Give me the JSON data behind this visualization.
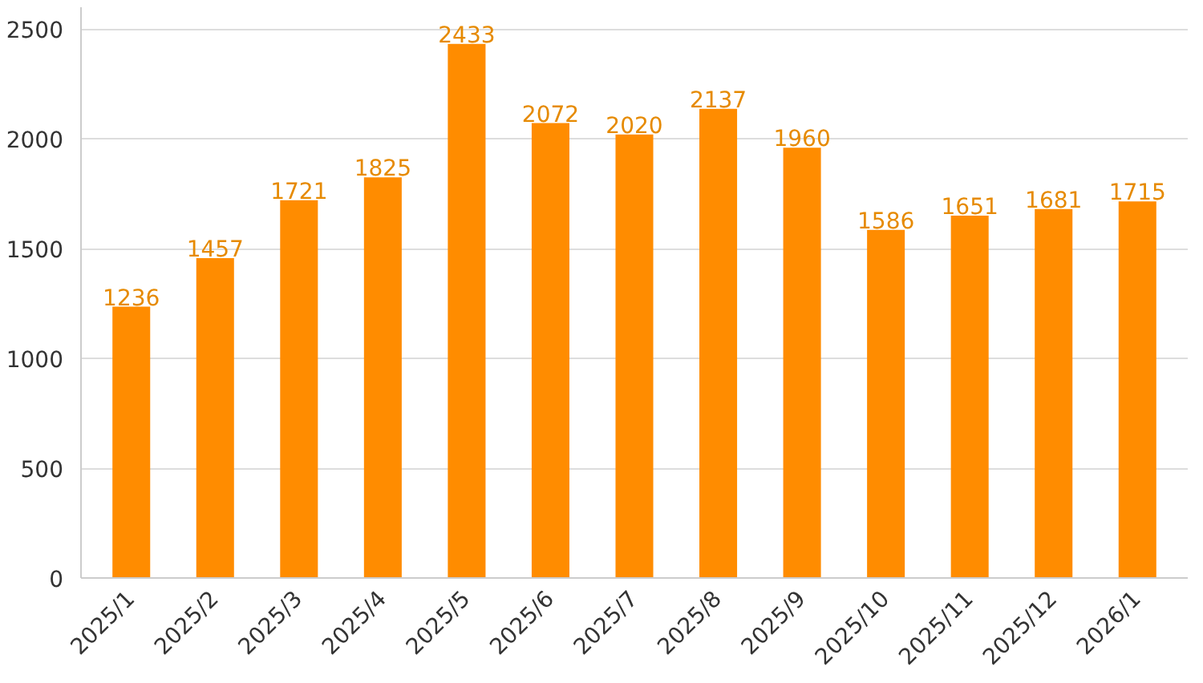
{
  "chart_data": {
    "type": "bar",
    "categories": [
      "2025/1",
      "2025/2",
      "2025/3",
      "2025/4",
      "2025/5",
      "2025/6",
      "2025/7",
      "2025/8",
      "2025/9",
      "2025/10",
      "2025/11",
      "2025/12",
      "2026/1"
    ],
    "values": [
      1236,
      1457,
      1721,
      1825,
      2433,
      2072,
      2020,
      2137,
      1960,
      1586,
      1651,
      1681,
      1715
    ],
    "color": "#ff8c00",
    "ylim": [
      0,
      2600
    ],
    "yticks": [
      0,
      500,
      1000,
      1500,
      2000,
      2500
    ],
    "grid": "y",
    "data_labels": true
  }
}
